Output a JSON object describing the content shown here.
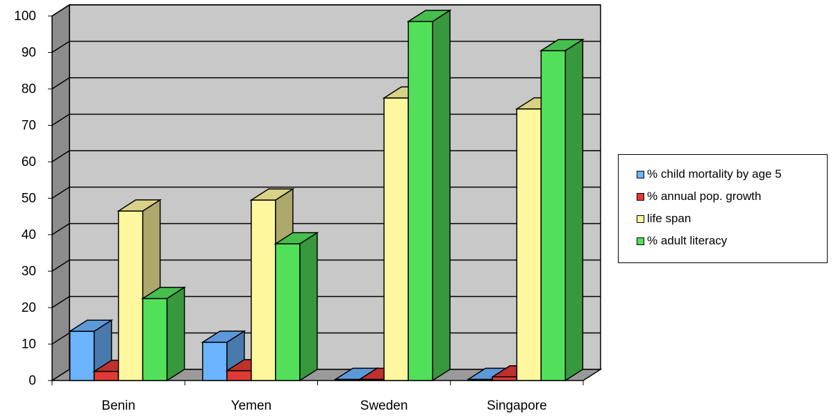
{
  "chart_data": {
    "type": "bar",
    "title": "",
    "xlabel": "",
    "ylabel": "",
    "categories": [
      "Benin",
      "Yemen",
      "Sweden",
      "Singapore"
    ],
    "series": [
      {
        "name": "% child mortality by age 5",
        "values": [
          13.5,
          10.5,
          0.3,
          0.3
        ],
        "color": "#6CB4FF"
      },
      {
        "name": "% annual pop. growth",
        "values": [
          2.5,
          2.7,
          0.3,
          1.0
        ],
        "color": "#E03A35"
      },
      {
        "name": "life span",
        "values": [
          46.5,
          49.5,
          77.5,
          74.5
        ],
        "color": "#FFF79E"
      },
      {
        "name": "% adult literacy",
        "values": [
          22.5,
          37.5,
          98.5,
          90.5
        ],
        "color": "#52E05A"
      }
    ],
    "yticks": [
      "0",
      "10",
      "20",
      "30",
      "40",
      "50",
      "60",
      "70",
      "80",
      "90",
      "100"
    ],
    "ylim": [
      0,
      100
    ],
    "grid": true,
    "legend_position": "right",
    "style": "3d"
  }
}
